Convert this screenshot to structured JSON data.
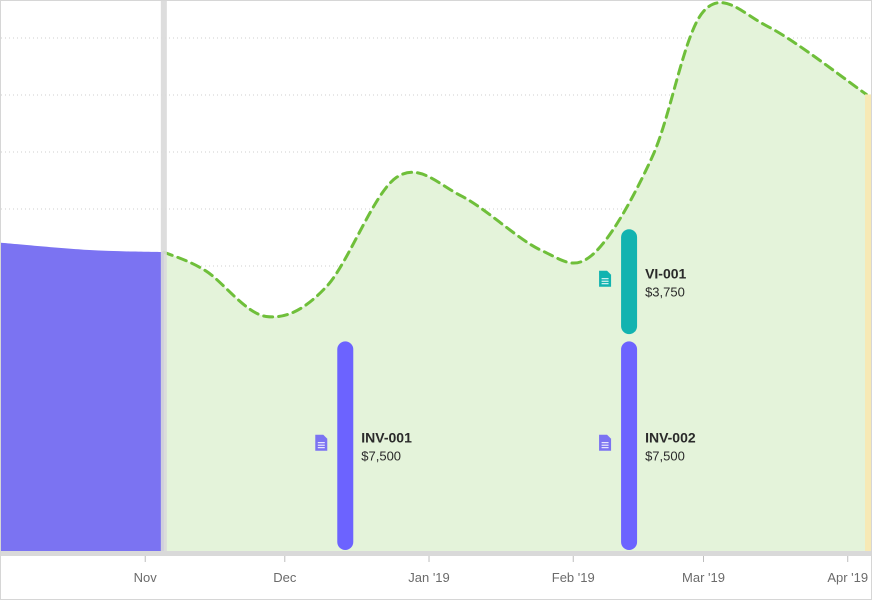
{
  "chart_data": {
    "type": "area",
    "x_ticks": [
      "Nov",
      "Dec",
      "Jan '19",
      "Feb '19",
      "Mar '19",
      "Apr '19"
    ],
    "actual_balance": [
      {
        "x": "2018-10-01",
        "y": 297
      },
      {
        "x": "2018-10-20",
        "y": 290
      },
      {
        "x": "2018-11-05",
        "y": 288
      }
    ],
    "forecast_balance": [
      {
        "x": "2018-11-05",
        "y": 288
      },
      {
        "x": "2018-11-14",
        "y": 270
      },
      {
        "x": "2018-11-27",
        "y": 226
      },
      {
        "x": "2018-12-10",
        "y": 255
      },
      {
        "x": "2018-12-25",
        "y": 360
      },
      {
        "x": "2019-01-08",
        "y": 342
      },
      {
        "x": "2019-01-25",
        "y": 290
      },
      {
        "x": "2019-02-05",
        "y": 285
      },
      {
        "x": "2019-02-18",
        "y": 380
      },
      {
        "x": "2019-03-01",
        "y": 520
      },
      {
        "x": "2019-03-15",
        "y": 505
      },
      {
        "x": "2019-04-05",
        "y": 440
      }
    ],
    "y_domain": [
      0,
      530
    ],
    "x_domain": [
      "2018-10-01",
      "2019-04-06"
    ],
    "grid": "horizontal dotted",
    "today": "2018-11-05",
    "transactions": [
      {
        "label": "INV-001",
        "amount": "$7,500",
        "date": "2018-12-14",
        "y0": 0,
        "y1": 202,
        "color": "#6c63ff"
      },
      {
        "label": "INV-002",
        "amount": "$7,500",
        "date": "2019-02-13",
        "y0": 0,
        "y1": 202,
        "color": "#6c63ff"
      },
      {
        "label": "VI-001",
        "amount": "$3,750",
        "date": "2019-02-13",
        "y0": 208,
        "y1": 310,
        "color": "#12b3b0"
      }
    ]
  },
  "colors": {
    "actual_fill": "#7b73f2",
    "forecast_fill": "#e4f3da",
    "forecast_line": "#6fbf3a",
    "today_marker": "#d9d9d9",
    "baseline": "#d9d9d9",
    "future_edge": "#f7e9b5",
    "doc_icon": "#7b73f2",
    "doc_icon_teal": "#12b3b0"
  },
  "icons": {
    "transaction": "document-icon"
  }
}
